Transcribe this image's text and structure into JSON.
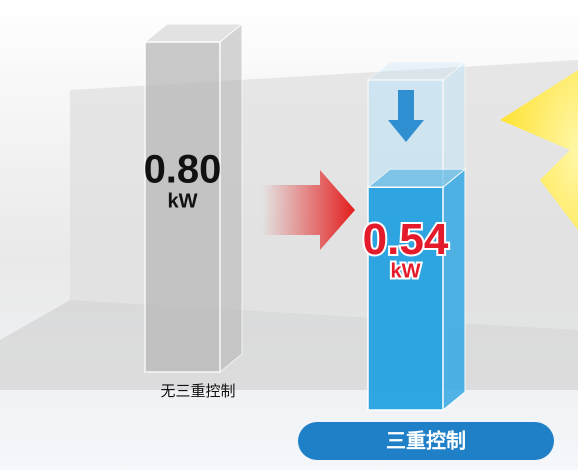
{
  "chart_data": {
    "type": "bar",
    "categories": [
      "无三重控制",
      "三重控制"
    ],
    "values": [
      0.8,
      0.54
    ],
    "value_labels": [
      "0.80",
      "0.54"
    ],
    "unit": "kW",
    "colors": [
      "#b9b9b9",
      "#1e9ee0"
    ]
  }
}
